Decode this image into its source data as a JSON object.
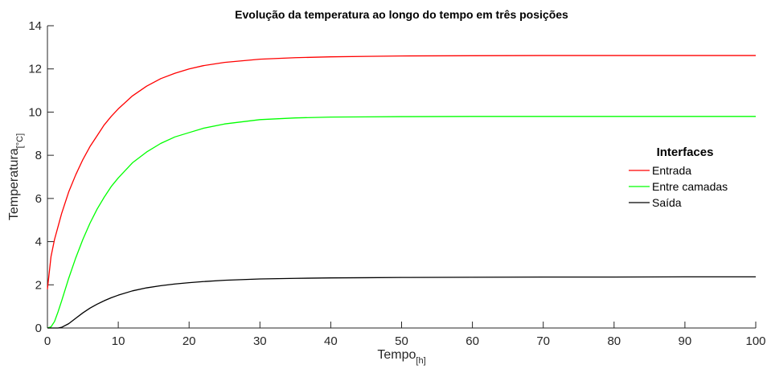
{
  "chart_data": {
    "type": "line",
    "title": "Evolução da temperatura ao longo do tempo em três posições",
    "xlabel": "Tempo",
    "xlabel_unit": "[h]",
    "ylabel": "Temperatura",
    "ylabel_unit": "[°C]",
    "xlim": [
      0,
      100
    ],
    "ylim": [
      0,
      14
    ],
    "x_ticks": [
      "0",
      "10",
      "20",
      "30",
      "40",
      "50",
      "60",
      "70",
      "80",
      "90",
      "100"
    ],
    "y_ticks": [
      "0",
      "2",
      "4",
      "6",
      "8",
      "10",
      "12",
      "14"
    ],
    "grid": false,
    "legend": {
      "title": "Interfaces",
      "placement": "right"
    },
    "x": [
      0,
      0.5,
      1,
      1.5,
      2,
      3,
      4,
      5,
      6,
      7,
      8,
      9,
      10,
      12,
      14,
      16,
      18,
      20,
      22,
      25,
      30,
      35,
      40,
      45,
      50,
      60,
      70,
      80,
      90,
      100
    ],
    "series": [
      {
        "name": "Entrada",
        "color": "#ff0000",
        "values": [
          1.8,
          3.3,
          4.1,
          4.7,
          5.3,
          6.3,
          7.1,
          7.8,
          8.4,
          8.9,
          9.4,
          9.8,
          10.15,
          10.75,
          11.2,
          11.55,
          11.8,
          12.0,
          12.15,
          12.3,
          12.45,
          12.52,
          12.56,
          12.58,
          12.6,
          12.61,
          12.62,
          12.62,
          12.62,
          12.62
        ]
      },
      {
        "name": "Entre camadas",
        "color": "#00ff00",
        "values": [
          0,
          0.05,
          0.3,
          0.75,
          1.25,
          2.3,
          3.25,
          4.1,
          4.85,
          5.5,
          6.05,
          6.55,
          6.95,
          7.65,
          8.15,
          8.55,
          8.85,
          9.05,
          9.25,
          9.45,
          9.65,
          9.73,
          9.77,
          9.78,
          9.79,
          9.8,
          9.8,
          9.8,
          9.8,
          9.8
        ]
      },
      {
        "name": "Saída",
        "color": "#000000",
        "values": [
          0,
          0,
          0,
          0,
          0.03,
          0.2,
          0.45,
          0.7,
          0.92,
          1.1,
          1.26,
          1.4,
          1.52,
          1.72,
          1.86,
          1.96,
          2.04,
          2.1,
          2.15,
          2.21,
          2.27,
          2.3,
          2.32,
          2.33,
          2.34,
          2.35,
          2.36,
          2.36,
          2.37,
          2.37
        ]
      }
    ]
  }
}
